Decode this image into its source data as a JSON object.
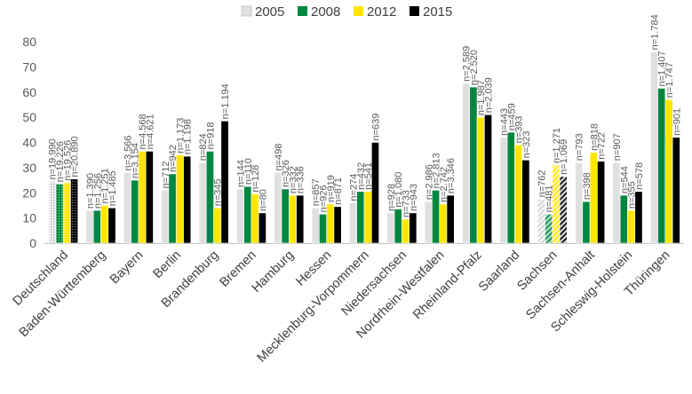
{
  "chart_data": {
    "type": "bar",
    "title": "",
    "xlabel": "",
    "ylabel": "",
    "ylim": [
      0,
      80
    ],
    "yticks": [
      0,
      10,
      20,
      30,
      40,
      50,
      60,
      70,
      80
    ],
    "grid": false,
    "legend_position": "top",
    "categories": [
      "Deutschland",
      "Baden-Württemberg",
      "Bayern",
      "Berlin",
      "Brandenburg",
      "Bremen",
      "Hamburg",
      "Hessen",
      "Mecklenburg-Vorpommern",
      "Niedersachsen",
      "Nordrhein-Westfalen",
      "Rheinland-Pfalz",
      "Saarland",
      "Sachsen",
      "Sachsen-Anhalt",
      "Schleswig-Holstein",
      "Thüringen"
    ],
    "series": [
      {
        "name": "2005",
        "color": "#e0e0e0",
        "values": [
          24.5,
          13,
          28,
          21,
          32,
          21.5,
          28,
          14,
          16,
          12,
          16.5,
          63.5,
          42,
          17.5,
          32,
          32,
          76
        ],
        "n_labels": [
          "n=19.990",
          "n=1.390",
          "n=3.566",
          "n=712",
          "n=824",
          "n=144",
          "n=498",
          "n=857",
          "n=274",
          "n=928",
          "n=2.986",
          "n=2.589",
          "n=443",
          "n=762",
          "n=793",
          "n=907",
          "n=1.784"
        ]
      },
      {
        "name": "2008",
        "color": "#00873f",
        "values": [
          23.5,
          13,
          25,
          27.5,
          36.5,
          22.5,
          21.5,
          11.5,
          20.5,
          13.5,
          21,
          62,
          44,
          11.5,
          16.5,
          19,
          61.5
        ],
        "n_labels": [
          "n=19.226",
          "n=1.256",
          "n=3.154",
          "n=942",
          "n=918",
          "n=110",
          "n=326",
          "n=926",
          "n=432",
          "n=1.080",
          "n=2.813",
          "n=2.520",
          "n=459",
          "n=481",
          "n=398",
          "n=544",
          "n=1.407"
        ]
      },
      {
        "name": "2012",
        "color": "#ffe600",
        "values": [
          24,
          15,
          36.5,
          35,
          14,
          19.5,
          19,
          15.5,
          20.5,
          9.5,
          15.5,
          50,
          39,
          31,
          36,
          13,
          57
        ],
        "n_labels": [
          "n=19.526",
          "n=1.251",
          "n=4.568",
          "n=1.173",
          "n=345",
          "n=128",
          "n=332",
          "n=919",
          "n=541",
          "n=733",
          "n=2.742",
          "n=1.987",
          "n=393",
          "n=1.271",
          "n=818",
          "n=355",
          "n=1.747"
        ]
      },
      {
        "name": "2015",
        "color": "#000000",
        "values": [
          25.5,
          14,
          36.5,
          34.5,
          48.5,
          12,
          19,
          14.5,
          40,
          12,
          19,
          51,
          33,
          26.5,
          32.5,
          20.5,
          42
        ],
        "n_labels": [
          "n=20.890",
          "n=1.485",
          "n=4.621",
          "n=1.198",
          "n=1.194",
          "n=80",
          "n=336",
          "n=871",
          "n=639",
          "n=943",
          "n=3.346",
          "n=2.039",
          "n=323",
          "n=1.069",
          "n=722",
          "n=578",
          "n=901"
        ]
      }
    ],
    "patterned_bars": [
      {
        "category": "Deutschland",
        "note": "dotted / hatched fill"
      },
      {
        "category": "Sachsen",
        "note": "dotted / hatched fill"
      }
    ]
  }
}
